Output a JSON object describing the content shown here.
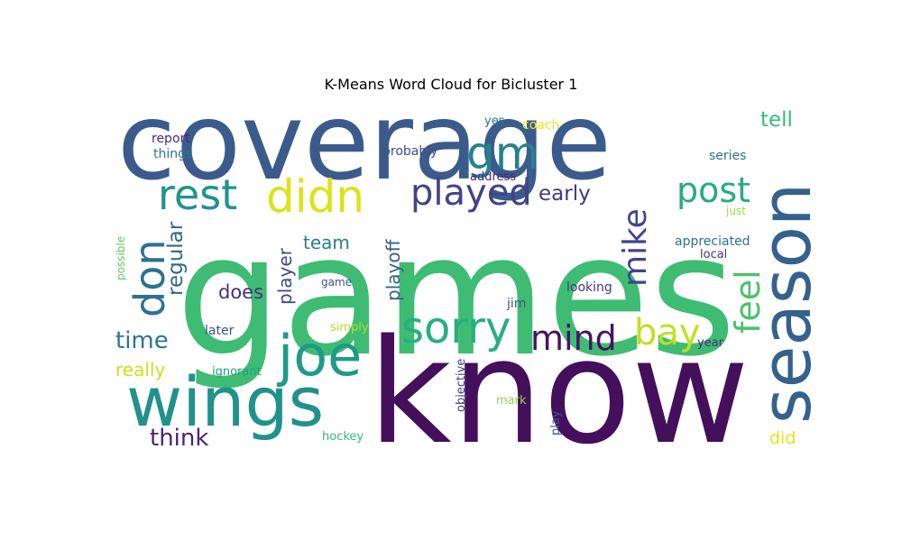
{
  "title": "K-Means Word Cloud for Bicluster 1",
  "words": [
    {
      "text": "coverage",
      "color": "#3b5b8c"
    },
    {
      "text": "games",
      "color": "#3fbc73"
    },
    {
      "text": "know",
      "color": "#440f5b"
    },
    {
      "text": "season",
      "color": "#35618d"
    },
    {
      "text": "wings",
      "color": "#20928c"
    },
    {
      "text": "joe",
      "color": "#1f9a8a"
    },
    {
      "text": "rest",
      "color": "#1f948c"
    },
    {
      "text": "didn",
      "color": "#dde318"
    },
    {
      "text": "gm",
      "color": "#26828e"
    },
    {
      "text": "played",
      "color": "#414487"
    },
    {
      "text": "post",
      "color": "#25ab82"
    },
    {
      "text": "don",
      "color": "#2c728e"
    },
    {
      "text": "sorry",
      "color": "#29af7f"
    },
    {
      "text": "mind",
      "color": "#471365"
    },
    {
      "text": "bay",
      "color": "#c2df23"
    },
    {
      "text": "mike",
      "color": "#404688"
    },
    {
      "text": "feel",
      "color": "#4ac16d"
    },
    {
      "text": "tell",
      "color": "#3aba76"
    },
    {
      "text": "early",
      "color": "#453882"
    },
    {
      "text": "regular",
      "color": "#31688e"
    },
    {
      "text": "time",
      "color": "#2a768e"
    },
    {
      "text": "team",
      "color": "#277f8e"
    },
    {
      "text": "player",
      "color": "#3f4889"
    },
    {
      "text": "playoff",
      "color": "#355e8d"
    },
    {
      "text": "does",
      "color": "#46307e"
    },
    {
      "text": "really",
      "color": "#cae11f"
    },
    {
      "text": "think",
      "color": "#482576"
    },
    {
      "text": "did",
      "color": "#e5e419"
    },
    {
      "text": "report",
      "color": "#482979"
    },
    {
      "text": "things",
      "color": "#2a788e"
    },
    {
      "text": "probably",
      "color": "#3e4c8a"
    },
    {
      "text": "yes",
      "color": "#2c728e"
    },
    {
      "text": "coach",
      "color": "#f1e51d"
    },
    {
      "text": "address",
      "color": "#482475"
    },
    {
      "text": "series",
      "color": "#2c738e"
    },
    {
      "text": "just",
      "color": "#a2da37"
    },
    {
      "text": "possible",
      "color": "#5ec962"
    },
    {
      "text": "appreciated",
      "color": "#2e6f8e"
    },
    {
      "text": "local",
      "color": "#46337f"
    },
    {
      "text": "game",
      "color": "#3b528b"
    },
    {
      "text": "looking",
      "color": "#453781"
    },
    {
      "text": "jim",
      "color": "#39568c"
    },
    {
      "text": "later",
      "color": "#3d4e8a"
    },
    {
      "text": "simply",
      "color": "#b5de2b"
    },
    {
      "text": "year",
      "color": "#472c7a"
    },
    {
      "text": "ignorant",
      "color": "#1f9e89"
    },
    {
      "text": "objective",
      "color": "#443a83"
    },
    {
      "text": "mark",
      "color": "#8fd744"
    },
    {
      "text": "play",
      "color": "#365c8d"
    },
    {
      "text": "hockey",
      "color": "#35b779"
    }
  ]
}
